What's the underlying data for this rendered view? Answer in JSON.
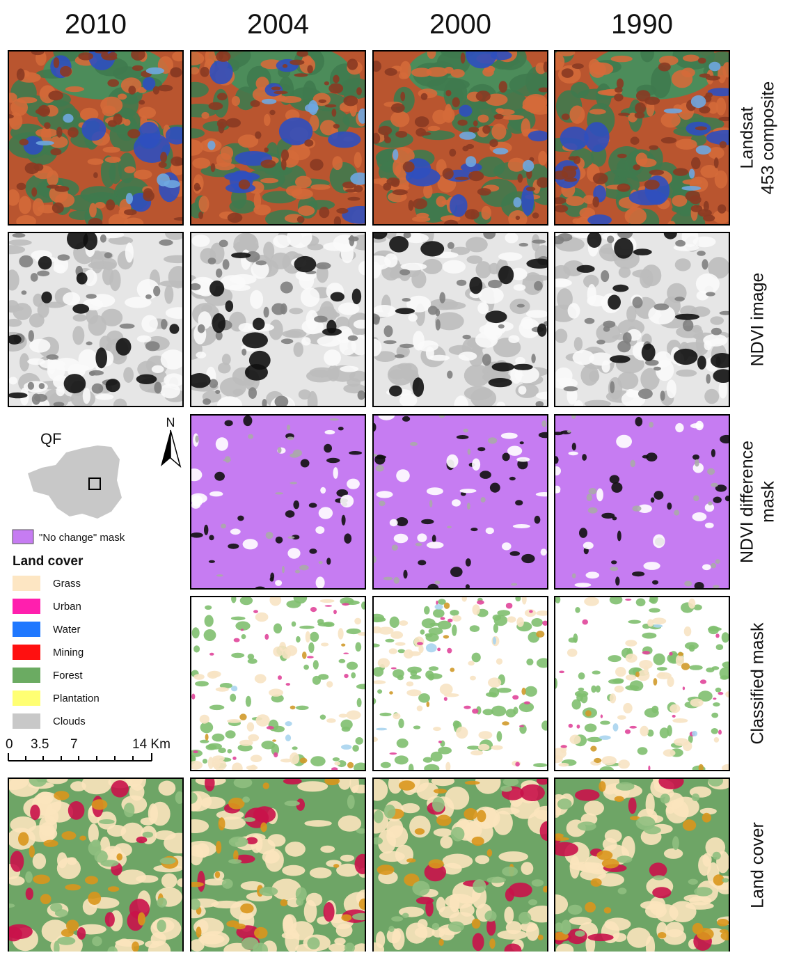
{
  "column_headers": [
    "2010",
    "2004",
    "2000",
    "1990"
  ],
  "row_labels": [
    [
      "Landsat",
      "453 composite"
    ],
    [
      "NDVI image"
    ],
    [
      "NDVI difference",
      "mask"
    ],
    [
      "Classified mask"
    ],
    [
      "Land cover"
    ]
  ],
  "inset": {
    "label": "QF"
  },
  "north_arrow": "N",
  "legend": {
    "mask_item": {
      "label": "\"No change\" mask",
      "color": "#c67cf2"
    },
    "title": "Land cover",
    "items": [
      {
        "label": "Grass",
        "color": "#fde6c3"
      },
      {
        "label": "Urban",
        "color": "#ff1fae"
      },
      {
        "label": "Water",
        "color": "#1f78ff"
      },
      {
        "label": "Mining",
        "color": "#ff1010"
      },
      {
        "label": "Forest",
        "color": "#6bab62"
      },
      {
        "label": "Plantation",
        "color": "#ffff73"
      },
      {
        "label": "Clouds",
        "color": "#c8c8c8"
      }
    ]
  },
  "scale_bar": {
    "labels": [
      "0",
      "3.5",
      "7",
      "14 Km"
    ]
  }
}
